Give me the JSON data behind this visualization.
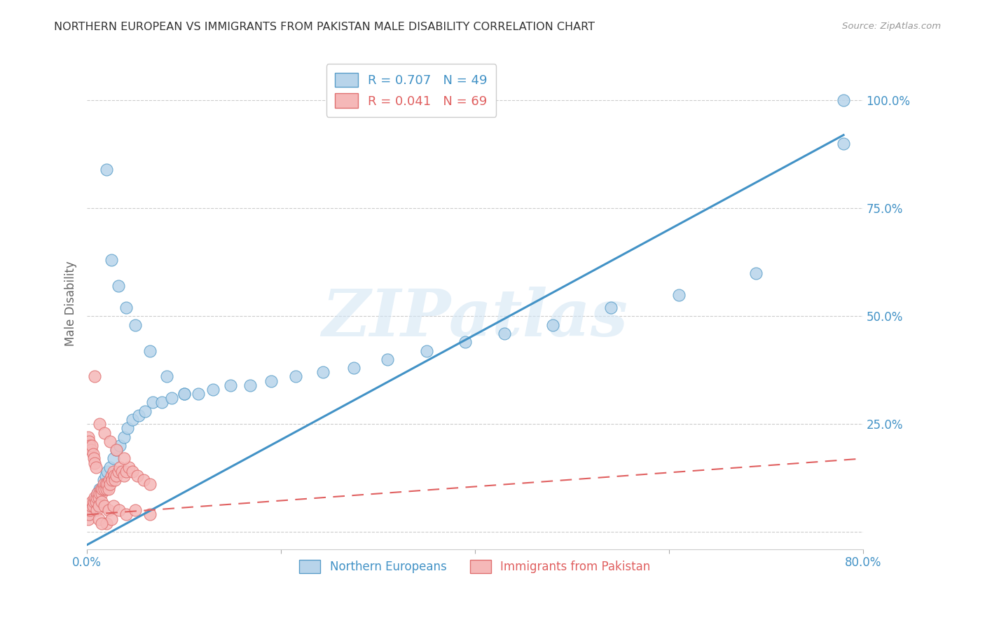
{
  "title": "NORTHERN EUROPEAN VS IMMIGRANTS FROM PAKISTAN MALE DISABILITY CORRELATION CHART",
  "source": "Source: ZipAtlas.com",
  "ylabel": "Male Disability",
  "watermark_text": "ZIPatlas",
  "legend1_label": "R = 0.707   N = 49",
  "legend2_label": "R = 0.041   N = 69",
  "trendline1_color": "#4292c6",
  "trendline2_color": "#e06060",
  "scatter1_facecolor": "#b8d4ea",
  "scatter1_edgecolor": "#5a9ec9",
  "scatter2_facecolor": "#f5b8b8",
  "scatter2_edgecolor": "#e07070",
  "background_color": "#ffffff",
  "ytick_color": "#4292c6",
  "grid_color": "#cccccc",
  "xlim": [
    0.0,
    0.8
  ],
  "ylim": [
    -0.04,
    1.1
  ],
  "trendline1_x0": 0.0,
  "trendline1_y0": -0.03,
  "trendline1_x1": 0.78,
  "trendline1_y1": 0.92,
  "trendline2_x0": 0.0,
  "trendline2_y0": 0.04,
  "trendline2_x1": 0.8,
  "trendline2_y1": 0.17,
  "northern_x": [
    0.003,
    0.005,
    0.007,
    0.009,
    0.011,
    0.013,
    0.015,
    0.017,
    0.019,
    0.021,
    0.024,
    0.027,
    0.03,
    0.034,
    0.038,
    0.042,
    0.047,
    0.053,
    0.06,
    0.068,
    0.077,
    0.087,
    0.1,
    0.115,
    0.13,
    0.148,
    0.168,
    0.19,
    0.215,
    0.243,
    0.275,
    0.31,
    0.35,
    0.39,
    0.43,
    0.48,
    0.54,
    0.61,
    0.69,
    0.78,
    0.02,
    0.025,
    0.032,
    0.04,
    0.05,
    0.065,
    0.082,
    0.1,
    0.78
  ],
  "northern_y": [
    0.04,
    0.05,
    0.07,
    0.08,
    0.09,
    0.1,
    0.1,
    0.12,
    0.13,
    0.14,
    0.15,
    0.17,
    0.19,
    0.2,
    0.22,
    0.24,
    0.26,
    0.27,
    0.28,
    0.3,
    0.3,
    0.31,
    0.32,
    0.32,
    0.33,
    0.34,
    0.34,
    0.35,
    0.36,
    0.37,
    0.38,
    0.4,
    0.42,
    0.44,
    0.46,
    0.48,
    0.52,
    0.55,
    0.6,
    0.9,
    0.84,
    0.63,
    0.57,
    0.52,
    0.48,
    0.42,
    0.36,
    0.32,
    1.0
  ],
  "pakistan_x": [
    0.001,
    0.002,
    0.003,
    0.004,
    0.005,
    0.006,
    0.007,
    0.008,
    0.009,
    0.01,
    0.011,
    0.012,
    0.013,
    0.014,
    0.015,
    0.016,
    0.017,
    0.018,
    0.019,
    0.02,
    0.021,
    0.022,
    0.023,
    0.024,
    0.025,
    0.026,
    0.027,
    0.028,
    0.029,
    0.03,
    0.032,
    0.034,
    0.036,
    0.038,
    0.04,
    0.043,
    0.047,
    0.052,
    0.058,
    0.065,
    0.001,
    0.002,
    0.003,
    0.004,
    0.005,
    0.006,
    0.007,
    0.008,
    0.009,
    0.01,
    0.012,
    0.015,
    0.018,
    0.022,
    0.027,
    0.033,
    0.04,
    0.05,
    0.065,
    0.008,
    0.013,
    0.018,
    0.024,
    0.03,
    0.038,
    0.012,
    0.02,
    0.025,
    0.015
  ],
  "pakistan_y": [
    0.03,
    0.04,
    0.05,
    0.06,
    0.07,
    0.06,
    0.07,
    0.08,
    0.07,
    0.08,
    0.09,
    0.08,
    0.09,
    0.1,
    0.09,
    0.1,
    0.11,
    0.1,
    0.11,
    0.1,
    0.11,
    0.1,
    0.12,
    0.11,
    0.13,
    0.12,
    0.14,
    0.13,
    0.12,
    0.13,
    0.14,
    0.15,
    0.14,
    0.13,
    0.14,
    0.15,
    0.14,
    0.13,
    0.12,
    0.11,
    0.22,
    0.21,
    0.2,
    0.19,
    0.2,
    0.18,
    0.17,
    0.16,
    0.15,
    0.05,
    0.06,
    0.07,
    0.06,
    0.05,
    0.06,
    0.05,
    0.04,
    0.05,
    0.04,
    0.36,
    0.25,
    0.23,
    0.21,
    0.19,
    0.17,
    0.03,
    0.02,
    0.03,
    0.02
  ]
}
